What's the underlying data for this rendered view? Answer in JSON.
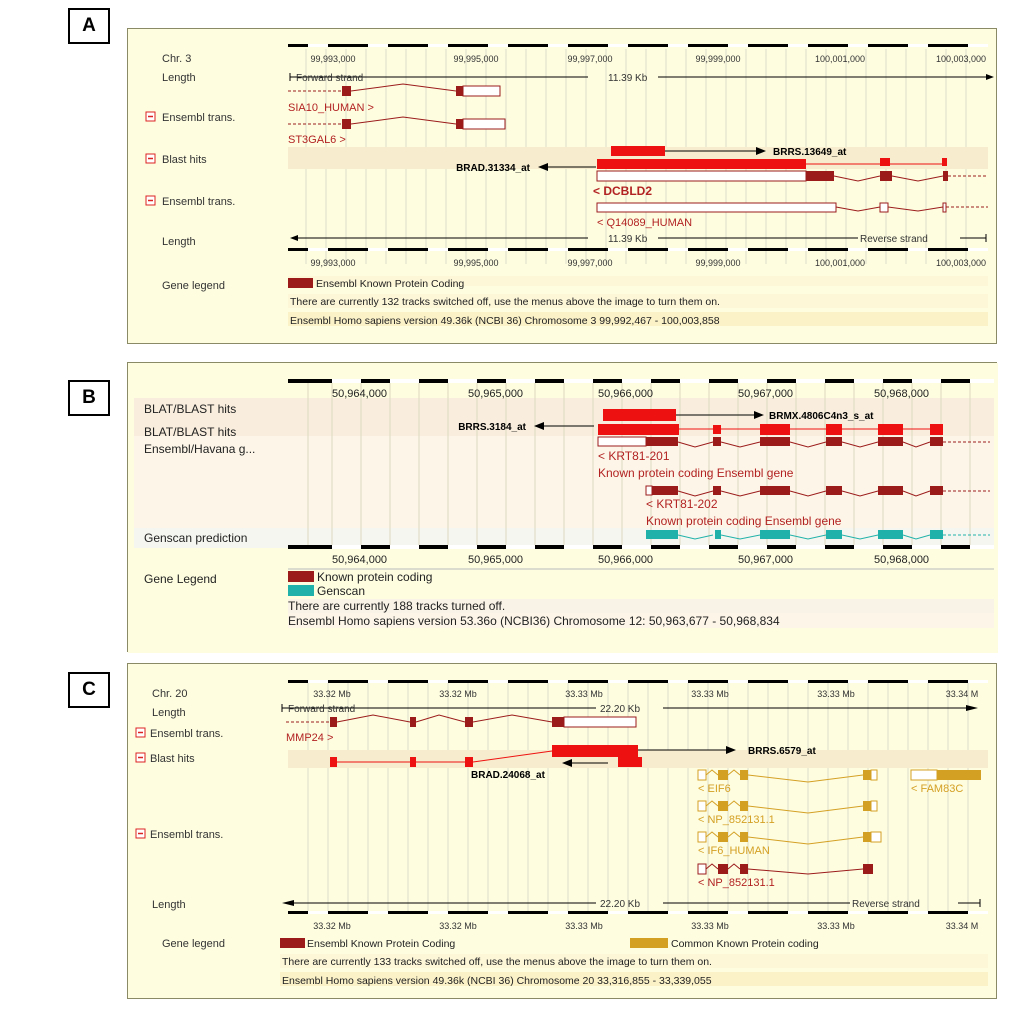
{
  "panels": [
    {
      "label": "A",
      "track_labels": {
        "chr": "Chr. 3",
        "length_top": "Length",
        "ens1": "Ensembl trans.",
        "blast": "Blast hits",
        "ens2": "Ensembl trans.",
        "length_bottom": "Length",
        "legend": "Gene legend"
      },
      "ruler_ticks": [
        "99,993,000",
        "99,995,000",
        "99,997,000",
        "99,999,000",
        "100,001,000",
        "100,003,000"
      ],
      "forward_strand": "Forward strand",
      "reverse_strand": "Reverse strand",
      "length_kb": "11.39 Kb",
      "features": {
        "t1": "SIA10_HUMAN >",
        "t2": "ST3GAL6 >",
        "hit_left": "BRAD.31334_at",
        "hit_right": "BRRS.13649_at",
        "gene": "< DCBLD2",
        "gene2": "< Q14089_HUMAN"
      },
      "legend_items": [
        "Ensembl Known Protein Coding"
      ],
      "info_lines": [
        "There are currently 132 tracks switched off, use the menus above the image to turn them on.",
        "Ensembl Homo sapiens version 49.36k (NCBI 36) Chromosome 3 99,992,467 - 100,003,858"
      ]
    },
    {
      "label": "B",
      "track_labels": {
        "blat1": "BLAT/BLAST hits",
        "blat2": "BLAT/BLAST hits",
        "ensh": "Ensembl/Havana g...",
        "genscan": "Genscan prediction",
        "legend": "Gene Legend"
      },
      "ruler_ticks": [
        "50,964,000",
        "50,965,000",
        "50,966,000",
        "50,967,000",
        "50,968,000"
      ],
      "features": {
        "hit_left": "BRRS.3184_at",
        "hit_right": "BRMX.4806C4n3_s_at",
        "k1": "< KRT81-201",
        "k1d": "Known protein coding Ensembl gene",
        "k2": "< KRT81-202",
        "k2d": "Known protein coding Ensembl gene"
      },
      "legend_items": [
        "Known protein coding",
        "Genscan"
      ],
      "info_lines": [
        "There are currently 188 tracks turned off.",
        "Ensembl Homo sapiens version 53.36o (NCBI36) Chromosome 12: 50,963,677 - 50,968,834"
      ]
    },
    {
      "label": "C",
      "track_labels": {
        "chr": "Chr. 20",
        "length_top": "Length",
        "ens1": "Ensembl trans.",
        "blast": "Blast hits",
        "ens2": "Ensembl trans.",
        "length_bottom": "Length",
        "legend": "Gene legend"
      },
      "ruler_ticks": [
        "33.32 Mb",
        "33.32 Mb",
        "33.33 Mb",
        "33.33 Mb",
        "33.33 Mb",
        "33.34 M"
      ],
      "forward_strand": "Forward strand",
      "reverse_strand": "Reverse strand",
      "length_kb": "22.20 Kb",
      "features": {
        "t1": "MMP24 >",
        "hit_left": "BRAD.24068_at",
        "hit_right": "BRRS.6579_at",
        "eif6": "< EIF6",
        "np1": "< NP_852131.1",
        "if6": "< IF6_HUMAN",
        "np2": "< NP_852131.1",
        "fam": "< FAM83C"
      },
      "legend_items": [
        "Ensembl Known Protein Coding",
        "Common Known Protein coding"
      ],
      "info_lines": [
        "There are currently 133 tracks switched off, use the menus above the image to turn them on.",
        "Ensembl Homo sapiens version 49.36k (NCBI 36) Chromosome 20 33,316,855 - 33,339,055"
      ]
    }
  ],
  "colors": {
    "panel_bg": "#fefde0",
    "known": "#9b1b1b",
    "blast": "#ee1111",
    "genscan": "#20b2aa",
    "common": "#d4a024",
    "feature_text": "#b22222",
    "stripe": "#f7eccd"
  }
}
